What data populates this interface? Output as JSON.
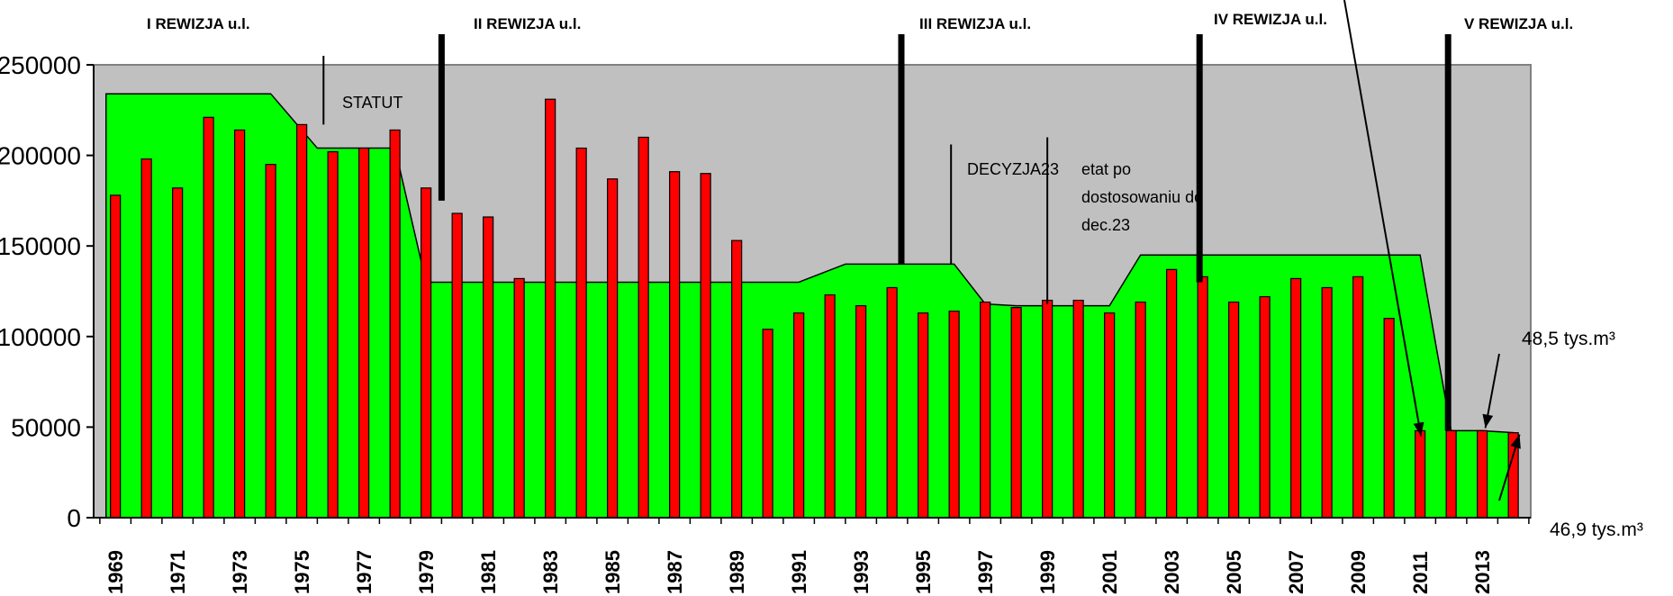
{
  "chart_data": {
    "type": "bar",
    "title": "",
    "xlabel": "",
    "ylabel": "",
    "ylim": [
      0,
      250000
    ],
    "yticks": [
      "0",
      "50000",
      "100000",
      "150000",
      "200000",
      "250000"
    ],
    "xtick_labels": [
      "1969",
      "1971",
      "1973",
      "1975",
      "1977",
      "1979",
      "1981",
      "1983",
      "1985",
      "1987",
      "1989",
      "1991",
      "1993",
      "1995",
      "1997",
      "1999",
      "2001",
      "2003",
      "2005",
      "2007",
      "2009",
      "2011",
      "2013"
    ],
    "grid": false,
    "legend": "none",
    "colors": {
      "bars": "#ff0000",
      "area": "#00ff00",
      "plot_bg": "#c0c0c0"
    },
    "bars": {
      "x": [
        1969,
        1970,
        1971,
        1972,
        1973,
        1974,
        1975,
        1976,
        1977,
        1978,
        1979,
        1980,
        1981,
        1982,
        1983,
        1984,
        1985,
        1986,
        1987,
        1988,
        1989,
        1990,
        1991,
        1992,
        1993,
        1994,
        1995,
        1996,
        1997,
        1998,
        1999,
        2000,
        2001,
        2002,
        2003,
        2004,
        2005,
        2006,
        2007,
        2008,
        2009,
        2010,
        2011,
        2012,
        2013,
        2014
      ],
      "values": [
        178000,
        198000,
        182000,
        221000,
        214000,
        195000,
        217000,
        202000,
        204000,
        214000,
        182000,
        168000,
        166000,
        132000,
        231000,
        204000,
        187000,
        210000,
        191000,
        190000,
        153000,
        104000,
        113000,
        123000,
        117000,
        127000,
        113000,
        114000,
        119000,
        116000,
        120000,
        120000,
        113000,
        119000,
        137000,
        133000,
        119000,
        122000,
        132000,
        127000,
        133000,
        110000,
        48000,
        48000,
        48000,
        46900
      ]
    },
    "area": {
      "x": [
        1969,
        1974,
        1975.5,
        1978,
        1979,
        1990,
        1991,
        1992.5,
        1996,
        1997,
        1998,
        2001,
        2002,
        2011,
        2011.5,
        2012,
        2013,
        2014
      ],
      "values": [
        234000,
        234000,
        204000,
        204000,
        130000,
        130000,
        130000,
        140000,
        140000,
        118000,
        117000,
        117000,
        145000,
        145000,
        96000,
        48000,
        48000,
        46900
      ]
    },
    "markers": [
      {
        "year": 1979.5,
        "top": 270000,
        "bottom": 175000,
        "label": "II REWIZJA u.l."
      },
      {
        "year": 1994.3,
        "top": 270000,
        "bottom": 140000,
        "label": "III REWIZJA u.l."
      },
      {
        "year": 2003.9,
        "top": 270000,
        "bottom": 130000,
        "label": "IV REWIZJA u.l."
      },
      {
        "year": 2011.9,
        "top": 270000,
        "bottom": 48000,
        "label": "V REWIZJA u.l."
      }
    ],
    "first_revision_label": "I REWIZJA u.l.",
    "annotations": [
      {
        "text": "STATUT",
        "year": 1975.7,
        "top": 255000,
        "bottom": 217000
      },
      {
        "text": "DECYZJA23",
        "year": 1995.9,
        "top": 206000,
        "bottom": 140000
      },
      {
        "text": "etat po",
        "year": 1999.0,
        "top": 210000,
        "bottom": 118000
      },
      {
        "text": "dostosowaniu do"
      },
      {
        "text": "dec.23"
      }
    ],
    "volume_labels": [
      {
        "text": "48,5 tys.m³",
        "year": 2013.1,
        "value": 48500
      },
      {
        "text": "46,9 tys.m³",
        "year": 2014.2,
        "value": 46900
      }
    ]
  }
}
